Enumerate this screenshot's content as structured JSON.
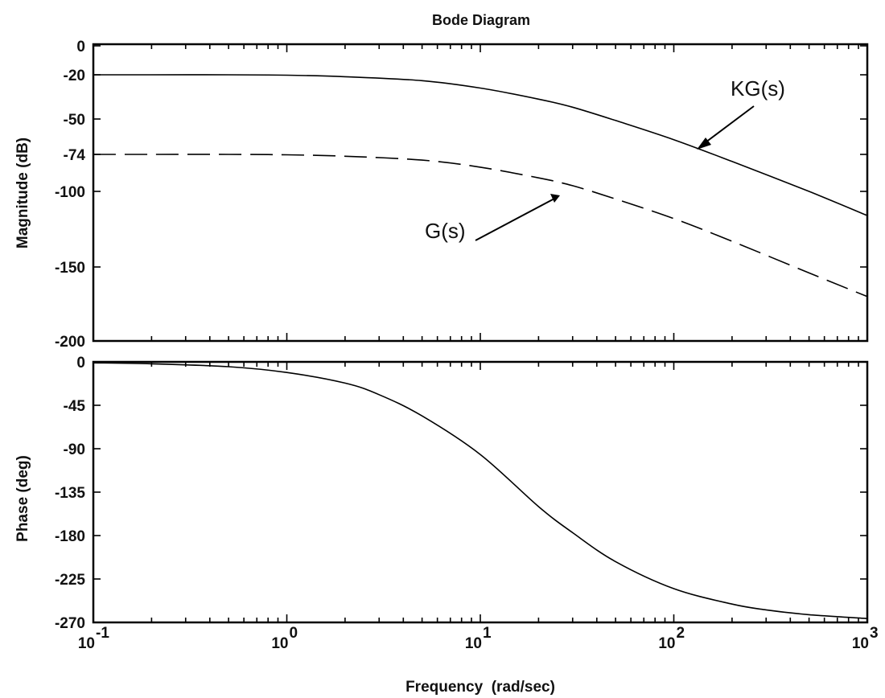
{
  "chart_data": [
    {
      "type": "line",
      "title": "Bode Diagram",
      "ylabel": "Magnitude (dB)",
      "xscale": "log",
      "xlim": [
        0.1,
        1000
      ],
      "ylim": [
        -200,
        0
      ],
      "yticks": [
        0,
        -20,
        -50,
        -74,
        -100,
        -150,
        -200
      ],
      "ytick_labels": [
        "0",
        "-20",
        "-50",
        "-74",
        "-100",
        "-150",
        "-200"
      ],
      "series": [
        {
          "name": "KG(s)",
          "style": "solid",
          "x": [
            0.1,
            0.2,
            0.5,
            1,
            2,
            5,
            10,
            20,
            30,
            50,
            100,
            200,
            500,
            1000
          ],
          "y": [
            -20,
            -20,
            -20,
            -20.3,
            -21.3,
            -24,
            -29,
            -36.5,
            -42,
            -51,
            -64,
            -79,
            -100,
            -116
          ]
        },
        {
          "name": "G(s)",
          "style": "dashed",
          "x": [
            0.1,
            0.2,
            0.5,
            1,
            2,
            5,
            10,
            20,
            30,
            50,
            100,
            200,
            500,
            1000
          ],
          "y": [
            -74,
            -74,
            -74,
            -74.3,
            -75.3,
            -78,
            -83,
            -90.5,
            -96,
            -105,
            -118,
            -133,
            -154,
            -170
          ]
        }
      ],
      "annotations": [
        "KG(s)",
        "G(s)"
      ]
    },
    {
      "type": "line",
      "ylabel": "Phase (deg)",
      "xlabel": "Frequency  (rad/sec)",
      "xscale": "log",
      "xlim": [
        0.1,
        1000
      ],
      "ylim": [
        -270,
        0
      ],
      "yticks": [
        0,
        -45,
        -90,
        -135,
        -180,
        -225,
        -270
      ],
      "ytick_labels": [
        "0",
        "-45",
        "-90",
        "-135",
        "-180",
        "-225",
        "-270"
      ],
      "xticks": [
        0.1,
        1,
        10,
        100,
        1000
      ],
      "xtick_labels": [
        {
          "base": "10",
          "exp": "-1"
        },
        {
          "base": "10",
          "exp": "0"
        },
        {
          "base": "10",
          "exp": "1"
        },
        {
          "base": "10",
          "exp": "2"
        },
        {
          "base": "10",
          "exp": "3"
        }
      ],
      "series": [
        {
          "style": "solid",
          "x": [
            0.1,
            0.2,
            0.5,
            1,
            2,
            3,
            5,
            10,
            20,
            30,
            50,
            100,
            200,
            300,
            500,
            1000
          ],
          "y": [
            -1,
            -2,
            -5,
            -11,
            -22,
            -34,
            -56,
            -96,
            -150,
            -177,
            -207,
            -235,
            -251,
            -257,
            -262,
            -266
          ]
        }
      ]
    }
  ]
}
